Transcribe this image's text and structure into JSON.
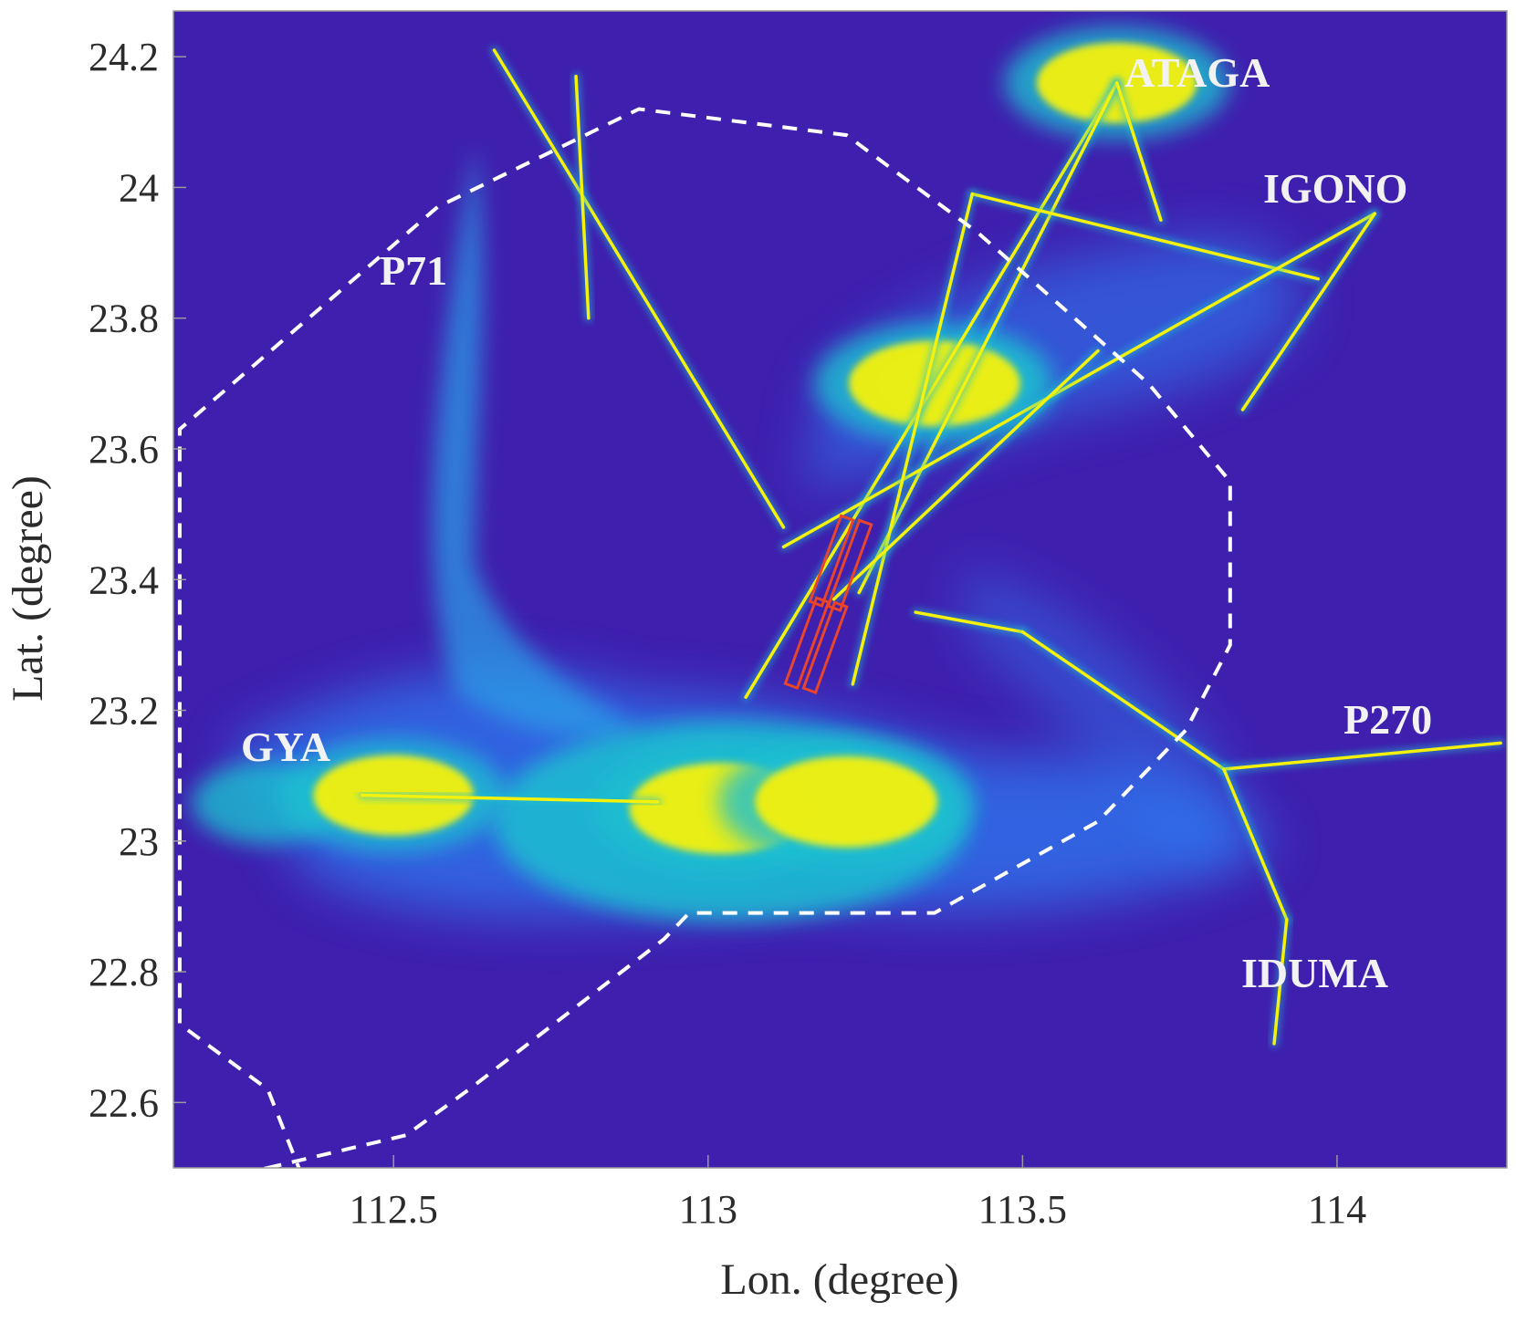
{
  "chart_data": {
    "type": "heatmap",
    "title": "",
    "xlabel": "Lon. (degree)",
    "ylabel": "Lat. (degree)",
    "xlim": [
      112.15,
      114.27
    ],
    "ylim": [
      22.5,
      24.27
    ],
    "xticks": [
      112.5,
      113,
      113.5,
      114
    ],
    "yticks": [
      22.6,
      22.8,
      23,
      23.2,
      23.4,
      23.6,
      23.8,
      24,
      24.2
    ],
    "xtick_labels": [
      "112.5",
      "113",
      "113.5",
      "114"
    ],
    "ytick_labels": [
      "22.6",
      "22.8",
      "23",
      "23.2",
      "23.4",
      "23.6",
      "23.8",
      "24",
      "24.2"
    ],
    "grid": false,
    "colors": {
      "background": "#3f1fae",
      "low": "#3a62f0",
      "mid": "#1fbfd0",
      "high": "#f4f10c",
      "boundary": "#ffffff",
      "runway": "#e8452a"
    },
    "waypoints": [
      {
        "name": "ATAGA",
        "lon": 113.65,
        "lat": 24.16
      },
      {
        "name": "IGONO",
        "lon": 114.06,
        "lat": 23.96
      },
      {
        "name": "P71",
        "lon": 112.82,
        "lat": 23.86
      },
      {
        "name": "GYA",
        "lon": 112.45,
        "lat": 23.07
      },
      {
        "name": "P270",
        "lon": 114.26,
        "lat": 23.15
      },
      {
        "name": "IDUMA",
        "lon": 113.92,
        "lat": 22.88
      }
    ],
    "boundary": [
      [
        112.37,
        22.45
      ],
      [
        112.3,
        22.62
      ],
      [
        112.16,
        22.72
      ],
      [
        112.16,
        23.63
      ],
      [
        112.57,
        23.97
      ],
      [
        112.89,
        24.12
      ],
      [
        113.22,
        24.08
      ],
      [
        113.43,
        23.93
      ],
      [
        113.7,
        23.7
      ],
      [
        113.83,
        23.55
      ],
      [
        113.83,
        23.3
      ],
      [
        113.76,
        23.17
      ],
      [
        113.62,
        23.03
      ],
      [
        113.36,
        22.89
      ],
      [
        112.97,
        22.89
      ],
      [
        112.93,
        22.85
      ],
      [
        112.62,
        22.62
      ],
      [
        112.52,
        22.55
      ],
      [
        112.3,
        22.5
      ]
    ],
    "routes": [
      {
        "from": [
          112.45,
          23.07
        ],
        "to": [
          112.92,
          23.06
        ]
      },
      {
        "from": [
          112.66,
          24.21
        ],
        "to": [
          113.12,
          23.48
        ]
      },
      {
        "from": [
          112.79,
          24.17
        ],
        "to": [
          112.81,
          23.8
        ]
      },
      {
        "from": [
          113.65,
          24.16
        ],
        "to": [
          113.06,
          23.22
        ]
      },
      {
        "from": [
          113.65,
          24.16
        ],
        "to": [
          113.24,
          23.38
        ]
      },
      {
        "from": [
          113.65,
          24.16
        ],
        "to": [
          113.72,
          23.95
        ]
      },
      {
        "from": [
          113.42,
          23.99
        ],
        "to": [
          113.97,
          23.86
        ]
      },
      {
        "from": [
          114.06,
          23.96
        ],
        "to": [
          113.12,
          23.45
        ]
      },
      {
        "from": [
          114.06,
          23.96
        ],
        "to": [
          113.85,
          23.66
        ]
      },
      {
        "from": [
          113.33,
          23.35
        ],
        "to": [
          113.5,
          23.32
        ]
      },
      {
        "from": [
          113.5,
          23.32
        ],
        "to": [
          113.82,
          23.11
        ]
      },
      {
        "from": [
          113.82,
          23.11
        ],
        "to": [
          114.26,
          23.15
        ]
      },
      {
        "from": [
          113.82,
          23.11
        ],
        "to": [
          113.92,
          22.88
        ]
      },
      {
        "from": [
          113.92,
          22.88
        ],
        "to": [
          113.9,
          22.69
        ]
      },
      {
        "from": [
          113.42,
          23.99
        ],
        "to": [
          113.23,
          23.24
        ]
      },
      {
        "from": [
          113.62,
          23.75
        ],
        "to": [
          113.2,
          23.37
        ]
      }
    ],
    "hotspots": [
      {
        "lon": 113.02,
        "lat": 23.05,
        "intensity": 1.0
      },
      {
        "lon": 113.22,
        "lat": 23.06,
        "intensity": 1.0
      },
      {
        "lon": 113.36,
        "lat": 23.7,
        "intensity": 0.9
      },
      {
        "lon": 112.5,
        "lat": 23.07,
        "intensity": 0.8
      },
      {
        "lon": 113.65,
        "lat": 24.16,
        "intensity": 0.8
      }
    ]
  },
  "labels": {
    "ataga": "ATAGA",
    "igono": "IGONO",
    "p71": "P71",
    "gya": "GYA",
    "p270": "P270",
    "iduma": "IDUMA"
  }
}
